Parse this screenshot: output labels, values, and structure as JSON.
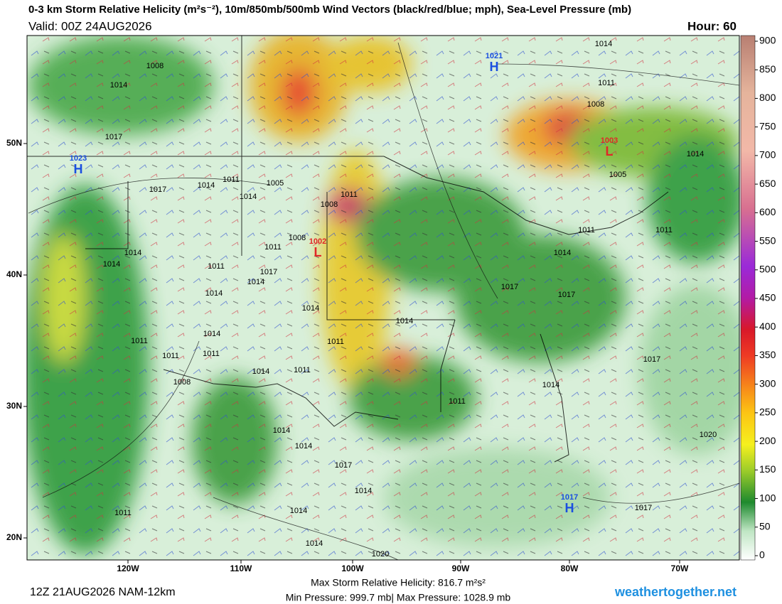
{
  "header": {
    "title": "0-3 km Storm Relative Helicity (m²s⁻²), 10m/850mb/500mb Wind Vectors (black/red/blue; mph), Sea-Level Pressure (mb)",
    "valid": "Valid: 00Z 24AUG2026",
    "hour": "Hour: 60"
  },
  "colorbar": {
    "ticks": [
      0,
      50,
      100,
      150,
      200,
      250,
      300,
      350,
      400,
      450,
      500,
      550,
      600,
      650,
      700,
      750,
      800,
      850,
      900
    ]
  },
  "axes": {
    "longitudes": [
      "120W",
      "110W",
      "100W",
      "90W",
      "80W",
      "70W"
    ],
    "latitudes": [
      "50N",
      "40N",
      "30N",
      "20N"
    ]
  },
  "pressure_labels": [
    "1008",
    "1014",
    "1017",
    "1017",
    "1014",
    "1011",
    "1005",
    "1014",
    "1011",
    "1008",
    "1008",
    "1011",
    "1014",
    "1014",
    "1011",
    "1017",
    "1014",
    "1014",
    "1014",
    "1014",
    "1011",
    "1011",
    "1011",
    "1011",
    "1014",
    "1011",
    "1008",
    "1014",
    "1017",
    "1017",
    "1014",
    "1011",
    "1011",
    "1014",
    "1011",
    "1008",
    "1005",
    "1014",
    "1017",
    "1014",
    "1011",
    "1020",
    "1014",
    "1014",
    "1017",
    "1014",
    "1014",
    "1011",
    "1014",
    "1020",
    "1017"
  ],
  "centers": [
    {
      "symbol": "H",
      "label": "1021"
    },
    {
      "symbol": "H",
      "label": "1023"
    },
    {
      "symbol": "L",
      "label": "1002"
    },
    {
      "symbol": "L",
      "label": "1003"
    },
    {
      "symbol": "H",
      "label": "1017"
    }
  ],
  "footer": {
    "run": "12Z 21AUG2026 NAM-12km",
    "max_helicity": "Max Storm Relative Helicity: 816.7 m²s²",
    "pressure": "Min Pressure: 999.7 mb| Max Pressure: 1028.9 mb",
    "site": "weathertogether.net"
  }
}
